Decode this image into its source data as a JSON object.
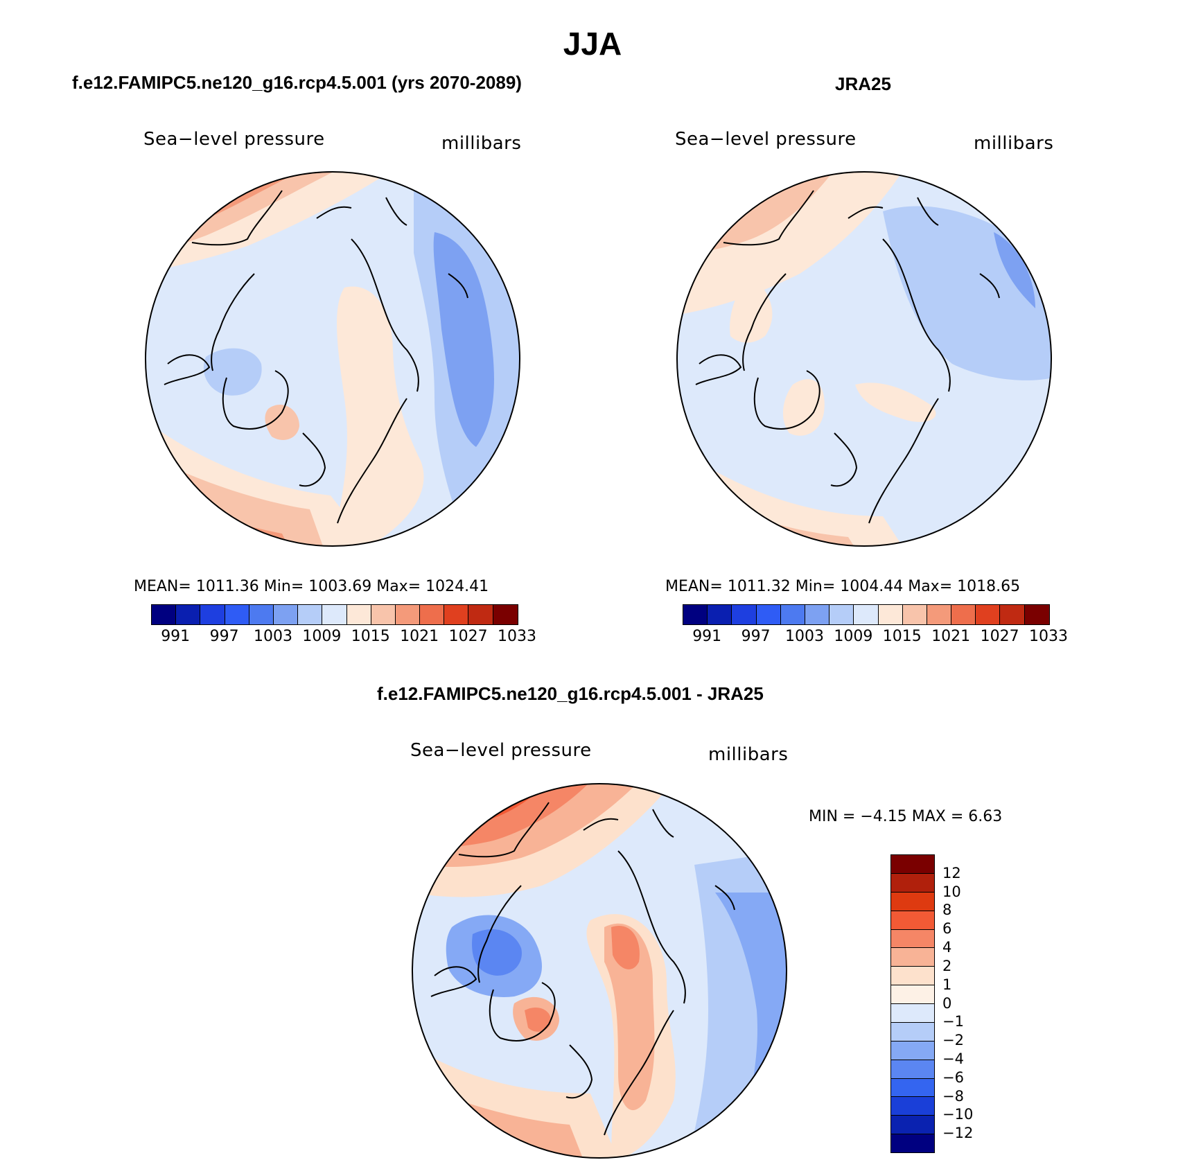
{
  "title": "JJA",
  "panels": [
    {
      "id": "model",
      "subtitle": "f.e12.FAMIPC5.ne120_g16.rcp4.5.001 (yrs 2070-2089)",
      "left_label": "Sea−level pressure",
      "right_label": "millibars",
      "stats": "MEAN=  1011.36    Min=  1003.69    Max=  1024.41"
    },
    {
      "id": "obs",
      "subtitle": "JRA25",
      "left_label": "Sea−level pressure",
      "right_label": "millibars",
      "stats": "MEAN=  1011.32    Min=  1004.44    Max=  1018.65"
    },
    {
      "id": "diff",
      "subtitle": "f.e12.FAMIPC5.ne120_g16.rcp4.5.001 - JRA25",
      "left_label": "Sea−level pressure",
      "right_label": "millibars",
      "stats": "MIN =   −4.15  MAX =    6.63"
    }
  ],
  "colorbar_abs": {
    "colors": [
      "#000080",
      "#0a1fb0",
      "#1e3fe0",
      "#2f5cf5",
      "#4d7af0",
      "#7da1f2",
      "#b5cdf8",
      "#dde9fb",
      "#fde8d8",
      "#f8c4ab",
      "#f49a7a",
      "#ee6e4c",
      "#e0401f",
      "#c02a12",
      "#7a0000"
    ],
    "ticks": [
      "991",
      "997",
      "1003",
      "1009",
      "1015",
      "1021",
      "1027",
      "1033"
    ]
  },
  "colorbar_diff": {
    "colors": [
      "#7a0000",
      "#b0200c",
      "#de3a10",
      "#f25a35",
      "#f58666",
      "#f8b396",
      "#fde1cc",
      "#fdf1e6",
      "#dde9fb",
      "#b5cdf8",
      "#85a9f5",
      "#5b86f2",
      "#3465f0",
      "#1a3fd8",
      "#0a22b0",
      "#000080"
    ],
    "ticks": [
      "12",
      "10",
      "8",
      "6",
      "4",
      "2",
      "1",
      "0",
      "−1",
      "−2",
      "−4",
      "−6",
      "−8",
      "−10",
      "−12"
    ]
  }
}
